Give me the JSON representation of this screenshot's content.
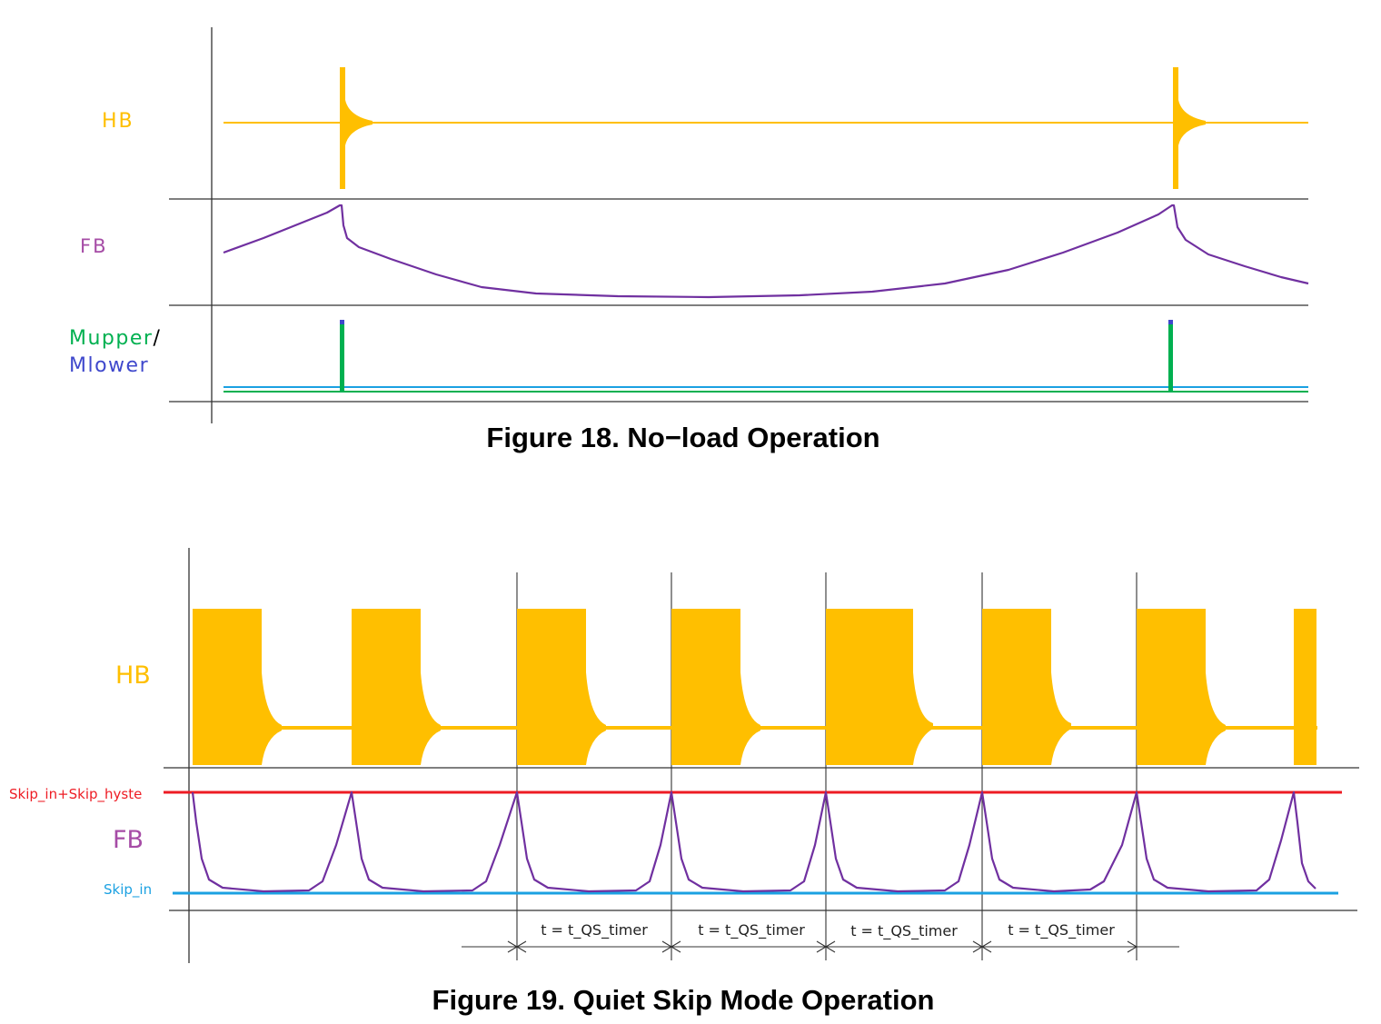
{
  "colors": {
    "hb": "#ffbf00",
    "fb": "#7030a0",
    "fb_label": "#a64ca6",
    "mupper": "#00b050",
    "mlower": "#3f48cc",
    "skip_hyste_line": "#ee1c24",
    "skip_in_line": "#1ba1e2",
    "axis": "#333333"
  },
  "figure18": {
    "caption": "Figure 18. No−load Operation",
    "labels": {
      "hb": "HB",
      "fb": "FB",
      "mupper": "Mupper",
      "slash": "/",
      "mlower": "Mlower"
    },
    "icons": [
      "hb-burst-icon",
      "fb-ramp-icon",
      "gate-pulse-icon"
    ]
  },
  "figure19": {
    "caption": "Figure 19. Quiet Skip Mode Operation",
    "labels": {
      "hb": "HB",
      "fb": "FB",
      "skip_hyste": "Skip_in+Skip_hyste",
      "skip_in": "Skip_in"
    },
    "timers": [
      "t = t_QS_timer",
      "t = t_QS_timer",
      "t = t_QS_timer",
      "t = t_QS_timer"
    ]
  }
}
